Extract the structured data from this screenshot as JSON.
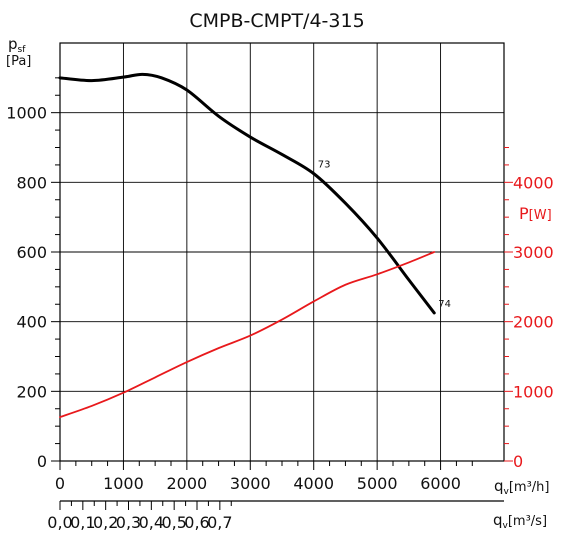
{
  "chart_data": {
    "type": "line",
    "title": "CMPB-CMPT/4-315",
    "y_left": {
      "label_main": "p",
      "label_sub": "sf",
      "unit": "[Pa]",
      "ylim": [
        0,
        1200
      ],
      "ticks": [
        "0",
        "200",
        "400",
        "600",
        "800",
        "1000"
      ]
    },
    "y_right": {
      "label_main": "P",
      "unit": "[W]",
      "ylim": [
        0,
        6000
      ],
      "ticks": [
        "0",
        "1000",
        "2000",
        "3000",
        "4000"
      ],
      "color": "#e8191c"
    },
    "x_top": {
      "label": "q",
      "label_sub": "v",
      "unit": "[m³/h]",
      "xlim": [
        0,
        7000
      ],
      "ticks": [
        "0",
        "1000",
        "2000",
        "3000",
        "4000",
        "5000",
        "6000"
      ]
    },
    "x_bottom": {
      "label": "q",
      "label_sub": "v",
      "unit": "[m³/s]",
      "ticks": [
        "0,0",
        "0,1",
        "0,2",
        "0,3",
        "0,4",
        "0,5",
        "0,6",
        "0,7"
      ]
    },
    "grid": true,
    "series": [
      {
        "axis": "left",
        "color": "#000000",
        "x": [
          0,
          500,
          1000,
          1300,
          1600,
          2000,
          2500,
          3000,
          3500,
          4000,
          4500,
          5000,
          5500,
          5900
        ],
        "y": [
          1100,
          1092,
          1102,
          1110,
          1100,
          1065,
          990,
          930,
          880,
          825,
          740,
          640,
          520,
          425
        ]
      },
      {
        "axis": "right",
        "color": "#e8191c",
        "x": [
          0,
          500,
          1000,
          1500,
          2000,
          2500,
          3000,
          3500,
          4000,
          4500,
          5000,
          5500,
          5900
        ],
        "y": [
          630,
          790,
          980,
          1200,
          1420,
          1620,
          1800,
          2030,
          2290,
          2530,
          2680,
          2850,
          3000
        ]
      }
    ],
    "annotations": [
      {
        "text": "73",
        "x": 4000,
        "y": 825
      },
      {
        "text": "74",
        "x": 5900,
        "y": 425
      }
    ]
  }
}
